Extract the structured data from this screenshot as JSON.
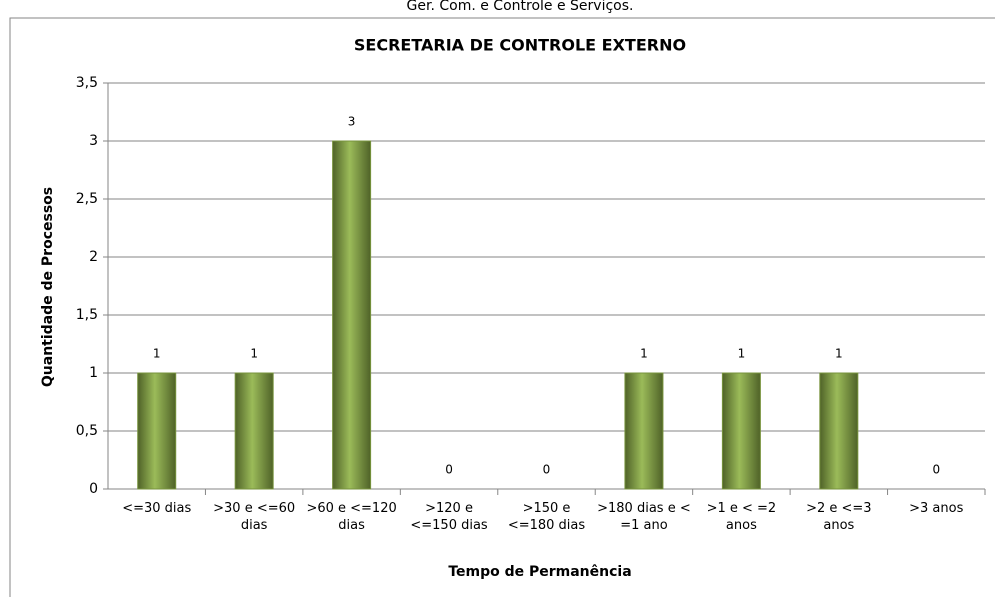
{
  "page_header": "Ger. Com. e Controle e Serviços.",
  "chart_data": {
    "type": "bar",
    "title": "SECRETARIA DE CONTROLE EXTERNO",
    "x_label": "Tempo de Permanência",
    "y_label": "Quantidade de Processos",
    "categories": [
      "<=30 dias",
      ">30 e <=60 dias",
      ">60 e <=120 dias",
      ">120 e <=150 dias",
      ">150 e <=180 dias",
      ">180 dias e < =1 ano",
      ">1 e < =2 anos",
      ">2 e <=3 anos",
      ">3 anos"
    ],
    "values": [
      1,
      1,
      3,
      0,
      0,
      1,
      1,
      1,
      0
    ],
    "color": "#77933c",
    "ylim": [
      0,
      3.5
    ],
    "yticks": [
      0,
      {
        "value": 0.5,
        "label": "0,5"
      },
      1,
      {
        "value": 1.5,
        "label": "1,5"
      },
      2,
      {
        "value": 2.5,
        "label": "2,5"
      },
      3,
      {
        "value": 3.5,
        "label": "3,5"
      }
    ],
    "grid": true
  }
}
